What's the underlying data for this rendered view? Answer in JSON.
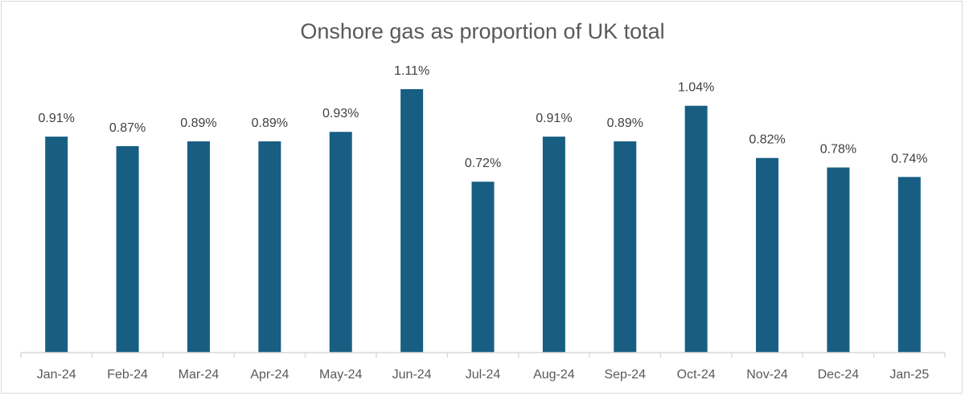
{
  "chart_data": {
    "type": "bar",
    "title": "Onshore gas as proportion of UK total",
    "xlabel": "",
    "ylabel": "",
    "categories": [
      "Jan-24",
      "Feb-24",
      "Mar-24",
      "Apr-24",
      "May-24",
      "Jun-24",
      "Jul-24",
      "Aug-24",
      "Sep-24",
      "Oct-24",
      "Nov-24",
      "Dec-24",
      "Jan-25"
    ],
    "values": [
      0.91,
      0.87,
      0.89,
      0.89,
      0.93,
      1.11,
      0.72,
      0.91,
      0.89,
      1.04,
      0.82,
      0.78,
      0.74
    ],
    "data_labels": [
      "0.91%",
      "0.87%",
      "0.89%",
      "0.89%",
      "0.93%",
      "1.11%",
      "0.72%",
      "0.91%",
      "0.89%",
      "1.04%",
      "0.82%",
      "0.78%",
      "0.74%"
    ],
    "ylim": [
      0,
      1.2
    ],
    "grid": false,
    "legend": "none",
    "bar_color": "#175e82"
  }
}
